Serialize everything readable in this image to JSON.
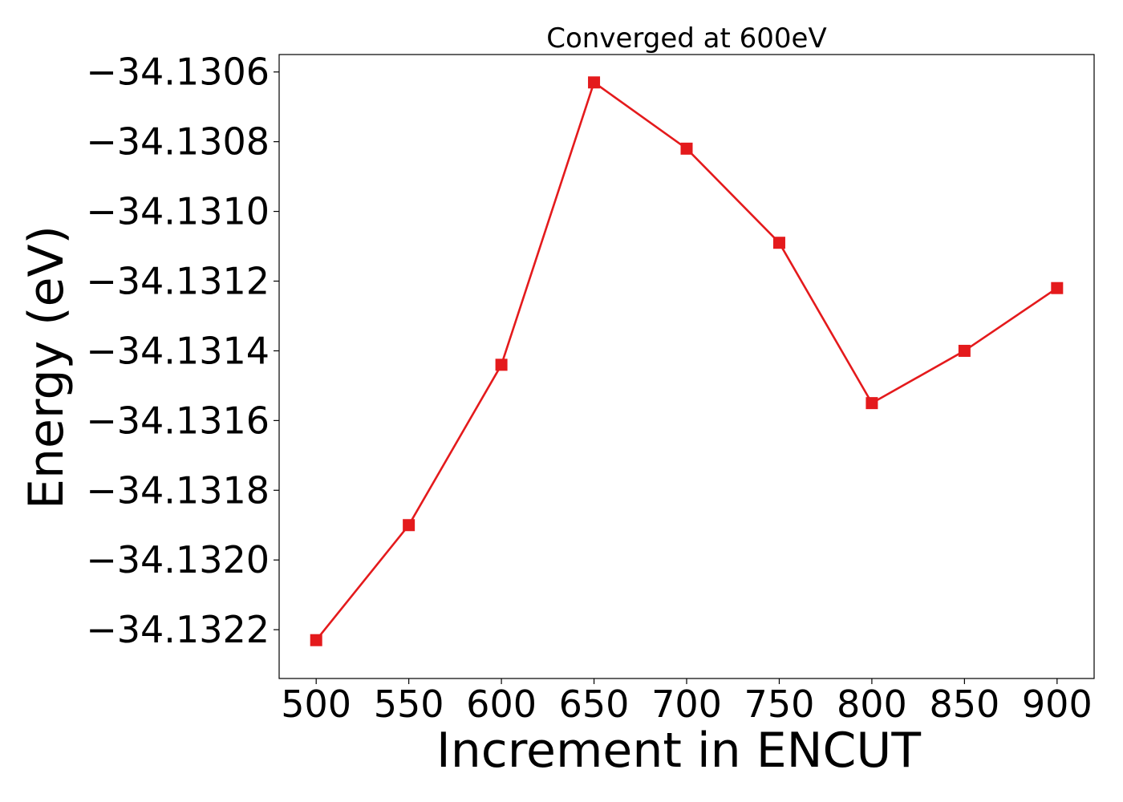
{
  "chart_data": {
    "type": "line",
    "title": "Converged at 600eV",
    "xlabel": "Increment in ENCUT",
    "ylabel": "Energy (eV)",
    "x": [
      500,
      550,
      600,
      650,
      700,
      750,
      800,
      850,
      900
    ],
    "series": [
      {
        "values": [
          -34.13223,
          -34.1319,
          -34.13144,
          -34.13063,
          -34.13082,
          -34.13109,
          -34.13155,
          -34.1314,
          -34.13122
        ],
        "color": "#e41a1c",
        "marker": "square"
      }
    ],
    "xticks": [
      500,
      550,
      600,
      650,
      700,
      750,
      800,
      850,
      900
    ],
    "xtick_labels": [
      "500",
      "550",
      "600",
      "650",
      "700",
      "750",
      "800",
      "850",
      "900"
    ],
    "yticks": [
      -34.1306,
      -34.1308,
      -34.131,
      -34.1312,
      -34.1314,
      -34.1316,
      -34.1318,
      -34.132,
      -34.1322
    ],
    "ytick_labels": [
      "−34.1306",
      "−34.1308",
      "−34.1310",
      "−34.1312",
      "−34.1314",
      "−34.1316",
      "−34.1318",
      "−34.1320",
      "−34.1322"
    ],
    "xlim": [
      480,
      920
    ],
    "ylim": [
      -34.13234,
      -34.13055
    ],
    "grid": false,
    "legend": "none"
  }
}
